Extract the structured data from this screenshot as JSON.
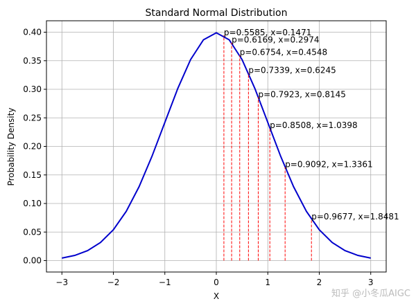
{
  "chart_data": {
    "type": "line",
    "title": "Standard Normal Distribution",
    "xlabel": "X",
    "ylabel": "Probability Density",
    "x": [
      -3,
      -2.75,
      -2.5,
      -2.25,
      -2,
      -1.75,
      -1.5,
      -1.25,
      -1,
      -0.75,
      -0.5,
      -0.25,
      0,
      0.25,
      0.5,
      0.75,
      1,
      1.25,
      1.5,
      1.75,
      2,
      2.25,
      2.5,
      2.75,
      3
    ],
    "series": [
      {
        "color": "#0000cc",
        "values": [
          0.00443,
          0.00909,
          0.01753,
          0.03174,
          0.05399,
          0.08628,
          0.12952,
          0.18265,
          0.24197,
          0.30114,
          0.35207,
          0.38667,
          0.39894,
          0.38667,
          0.35207,
          0.30114,
          0.24197,
          0.18265,
          0.12952,
          0.08628,
          0.05399,
          0.03174,
          0.01753,
          0.00909,
          0.00443
        ]
      }
    ],
    "vlines": {
      "color": "#ff0000",
      "x": [
        0.1471,
        0.2974,
        0.4548,
        0.6245,
        0.8145,
        1.0398,
        1.3361,
        1.8481
      ],
      "y": [
        0.39465,
        0.38168,
        0.35974,
        0.32826,
        0.28631,
        0.23234,
        0.1634,
        0.07232
      ],
      "labels": [
        "p=0.5585, x=0.1471",
        "p=0.6169, x=0.2974",
        "p=0.6754, x=0.4548",
        "p=0.7339, x=0.6245",
        "p=0.7923, x=0.8145",
        "p=0.8508, x=1.0398",
        "p=0.9092, x=1.3361",
        "p=0.9677, x=1.8481"
      ]
    },
    "xlim": [
      -3.3,
      3.3
    ],
    "ylim": [
      -0.02,
      0.42
    ],
    "xticks": [
      {
        "value": -3,
        "label": "−3"
      },
      {
        "value": -2,
        "label": "−2"
      },
      {
        "value": -1,
        "label": "−1"
      },
      0,
      1,
      2,
      3
    ],
    "yticks": [
      {
        "value": 0,
        "label": "0.00"
      },
      {
        "value": 0.05,
        "label": "0.05"
      },
      {
        "value": 0.1,
        "label": "0.10"
      },
      {
        "value": 0.15,
        "label": "0.15"
      },
      {
        "value": 0.2,
        "label": "0.20"
      },
      {
        "value": 0.25,
        "label": "0.25"
      },
      {
        "value": 0.3,
        "label": "0.30"
      },
      {
        "value": 0.35,
        "label": "0.35"
      },
      {
        "value": 0.4,
        "label": "0.40"
      }
    ],
    "grid": true,
    "watermark": "知乎 @小冬瓜AIGC"
  }
}
